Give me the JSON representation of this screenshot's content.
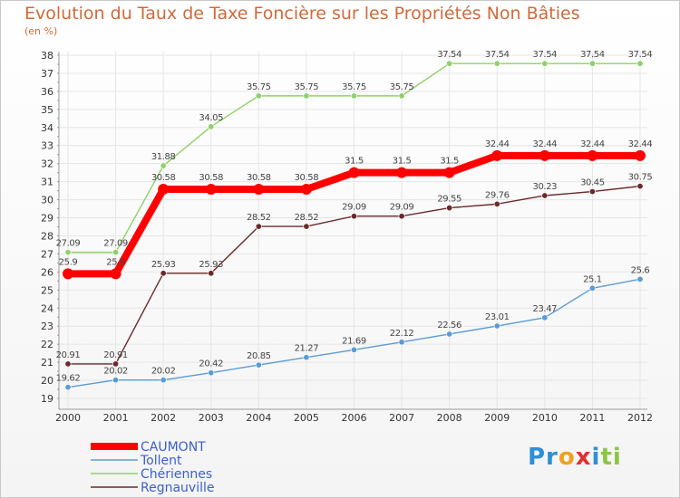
{
  "title": "Evolution du Taux de Taxe Foncière sur les Propriétés Non Bâties",
  "subtitle": "(en %)",
  "logo": {
    "parts": [
      "Pr",
      "o",
      "x",
      "i",
      "t",
      "i"
    ],
    "colors": [
      "#2e8fd6",
      "#f0a020",
      "#e03030",
      "#2e8fd6",
      "#8cc63f",
      "#8cc63f"
    ]
  },
  "chart_data": {
    "type": "line",
    "x": [
      "2000",
      "2001",
      "2002",
      "2003",
      "2004",
      "2005",
      "2006",
      "2007",
      "2008",
      "2009",
      "2010",
      "2011",
      "2012"
    ],
    "ylim": [
      19,
      38
    ],
    "yticks": [
      19,
      20,
      21,
      22,
      23,
      24,
      25,
      26,
      27,
      28,
      29,
      30,
      31,
      32,
      33,
      34,
      35,
      36,
      37,
      38
    ],
    "grid": true,
    "legend": "bottom-left",
    "series": [
      {
        "name": "Chériennes",
        "color": "#8fd16a",
        "values": [
          27.09,
          27.09,
          31.88,
          34.05,
          35.75,
          35.75,
          35.75,
          35.75,
          37.54,
          37.54,
          37.54,
          37.54,
          37.54
        ],
        "labels": [
          "27.09",
          "27.09",
          "31.88",
          "34.05",
          "35.75",
          "35.75",
          "35.75",
          "35.75",
          "37.54",
          "37.54",
          "37.54",
          "37.54",
          "37.54"
        ]
      },
      {
        "name": "Regnauville",
        "color": "#6b2a2a",
        "values": [
          20.91,
          20.91,
          25.93,
          25.93,
          28.52,
          28.52,
          29.09,
          29.09,
          29.55,
          29.76,
          30.23,
          30.45,
          30.75
        ],
        "labels": [
          "20.91",
          "20.91",
          "25.93",
          "25.93",
          "28.52",
          "28.52",
          "29.09",
          "29.09",
          "29.55",
          "29.76",
          "30.23",
          "30.45",
          "30.75"
        ]
      },
      {
        "name": "Tollent",
        "color": "#5b9bd5",
        "values": [
          19.62,
          20.02,
          20.02,
          20.42,
          20.85,
          21.27,
          21.69,
          22.12,
          22.56,
          23.01,
          23.47,
          25.1,
          25.6
        ],
        "labels": [
          "19.62",
          "20.02",
          "20.02",
          "20.42",
          "20.85",
          "21.27",
          "21.69",
          "22.12",
          "22.56",
          "23.01",
          "23.47",
          "25.1",
          "25.6"
        ]
      },
      {
        "name": "CAUMONT",
        "color": "#ff0000",
        "values": [
          25.9,
          25.9,
          30.58,
          30.58,
          30.58,
          30.58,
          31.5,
          31.5,
          31.5,
          32.44,
          32.44,
          32.44,
          32.44
        ],
        "labels": [
          "25.9",
          "25.9",
          "30.58",
          "30.58",
          "30.58",
          "30.58",
          "31.5",
          "31.5",
          "31.5",
          "32.44",
          "32.44",
          "32.44",
          "32.44"
        ]
      }
    ],
    "legend_order": [
      "CAUMONT",
      "Tollent",
      "Chériennes",
      "Regnauville"
    ]
  }
}
